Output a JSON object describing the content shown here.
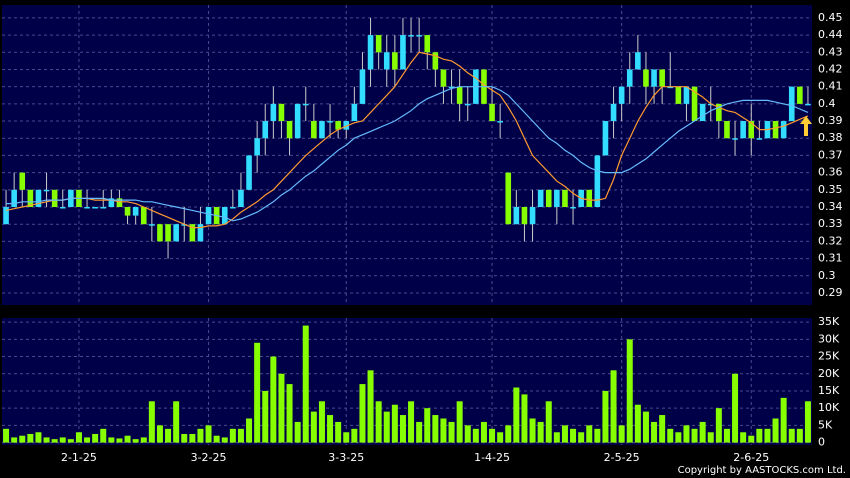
{
  "chart_data": [
    {
      "type": "candlestick",
      "up_color": "#33ddff",
      "down_color": "#88ff00",
      "grid": true,
      "ylim": [
        0.283,
        0.4575
      ],
      "yticks": [
        0.45,
        0.44,
        0.43,
        0.42,
        0.41,
        0.4,
        0.39,
        0.38,
        0.37,
        0.36,
        0.35,
        0.34,
        0.33,
        0.32,
        0.31,
        0.3,
        0.29
      ],
      "ohlc": [
        [
          0.33,
          0.35,
          0.33,
          0.34
        ],
        [
          0.34,
          0.36,
          0.34,
          0.35
        ],
        [
          0.36,
          0.36,
          0.34,
          0.35
        ],
        [
          0.35,
          0.35,
          0.34,
          0.34
        ],
        [
          0.34,
          0.35,
          0.34,
          0.35
        ],
        [
          0.35,
          0.36,
          0.34,
          0.35
        ],
        [
          0.35,
          0.35,
          0.34,
          0.34
        ],
        [
          0.34,
          0.35,
          0.34,
          0.34
        ],
        [
          0.34,
          0.35,
          0.34,
          0.35
        ],
        [
          0.35,
          0.35,
          0.34,
          0.34
        ],
        [
          0.34,
          0.35,
          0.34,
          0.34
        ],
        [
          0.34,
          0.34,
          0.34,
          0.34
        ],
        [
          0.34,
          0.35,
          0.34,
          0.34
        ],
        [
          0.34,
          0.35,
          0.34,
          0.345
        ],
        [
          0.345,
          0.35,
          0.34,
          0.34
        ],
        [
          0.34,
          0.34,
          0.33,
          0.335
        ],
        [
          0.335,
          0.34,
          0.33,
          0.34
        ],
        [
          0.34,
          0.34,
          0.33,
          0.33
        ],
        [
          0.33,
          0.34,
          0.32,
          0.33
        ],
        [
          0.33,
          0.33,
          0.32,
          0.32
        ],
        [
          0.33,
          0.33,
          0.31,
          0.32
        ],
        [
          0.32,
          0.33,
          0.32,
          0.33
        ],
        [
          0.33,
          0.34,
          0.32,
          0.33
        ],
        [
          0.33,
          0.33,
          0.32,
          0.32
        ],
        [
          0.32,
          0.34,
          0.32,
          0.33
        ],
        [
          0.33,
          0.34,
          0.33,
          0.34
        ],
        [
          0.34,
          0.34,
          0.33,
          0.33
        ],
        [
          0.33,
          0.34,
          0.33,
          0.34
        ],
        [
          0.34,
          0.35,
          0.34,
          0.34
        ],
        [
          0.34,
          0.36,
          0.34,
          0.35
        ],
        [
          0.35,
          0.37,
          0.35,
          0.37
        ],
        [
          0.37,
          0.39,
          0.36,
          0.38
        ],
        [
          0.38,
          0.4,
          0.37,
          0.39
        ],
        [
          0.39,
          0.41,
          0.38,
          0.4
        ],
        [
          0.4,
          0.4,
          0.38,
          0.39
        ],
        [
          0.39,
          0.39,
          0.37,
          0.38
        ],
        [
          0.38,
          0.4,
          0.38,
          0.4
        ],
        [
          0.4,
          0.41,
          0.39,
          0.4
        ],
        [
          0.39,
          0.4,
          0.38,
          0.38
        ],
        [
          0.38,
          0.39,
          0.38,
          0.39
        ],
        [
          0.39,
          0.4,
          0.38,
          0.39
        ],
        [
          0.39,
          0.39,
          0.38,
          0.385
        ],
        [
          0.385,
          0.39,
          0.38,
          0.39
        ],
        [
          0.39,
          0.41,
          0.39,
          0.4
        ],
        [
          0.4,
          0.43,
          0.4,
          0.42
        ],
        [
          0.42,
          0.45,
          0.41,
          0.44
        ],
        [
          0.44,
          0.44,
          0.42,
          0.43
        ],
        [
          0.42,
          0.44,
          0.41,
          0.43
        ],
        [
          0.43,
          0.44,
          0.41,
          0.42
        ],
        [
          0.42,
          0.45,
          0.42,
          0.44
        ],
        [
          0.44,
          0.45,
          0.43,
          0.44
        ],
        [
          0.44,
          0.45,
          0.43,
          0.44
        ],
        [
          0.44,
          0.44,
          0.42,
          0.43
        ],
        [
          0.43,
          0.43,
          0.41,
          0.42
        ],
        [
          0.42,
          0.42,
          0.4,
          0.41
        ],
        [
          0.41,
          0.42,
          0.4,
          0.41
        ],
        [
          0.41,
          0.42,
          0.39,
          0.4
        ],
        [
          0.4,
          0.41,
          0.39,
          0.4
        ],
        [
          0.4,
          0.42,
          0.4,
          0.42
        ],
        [
          0.42,
          0.42,
          0.4,
          0.4
        ],
        [
          0.4,
          0.41,
          0.39,
          0.39
        ],
        [
          0.39,
          0.4,
          0.38,
          0.39
        ],
        [
          0.36,
          0.36,
          0.33,
          0.33
        ],
        [
          0.33,
          0.35,
          0.33,
          0.34
        ],
        [
          0.34,
          0.34,
          0.32,
          0.33
        ],
        [
          0.33,
          0.35,
          0.32,
          0.34
        ],
        [
          0.34,
          0.35,
          0.34,
          0.35
        ],
        [
          0.35,
          0.35,
          0.34,
          0.34
        ],
        [
          0.34,
          0.35,
          0.33,
          0.35
        ],
        [
          0.35,
          0.35,
          0.34,
          0.34
        ],
        [
          0.34,
          0.35,
          0.33,
          0.34
        ],
        [
          0.34,
          0.35,
          0.34,
          0.35
        ],
        [
          0.35,
          0.35,
          0.34,
          0.34
        ],
        [
          0.34,
          0.37,
          0.34,
          0.37
        ],
        [
          0.37,
          0.39,
          0.37,
          0.39
        ],
        [
          0.39,
          0.41,
          0.38,
          0.4
        ],
        [
          0.4,
          0.41,
          0.39,
          0.41
        ],
        [
          0.41,
          0.43,
          0.4,
          0.42
        ],
        [
          0.42,
          0.44,
          0.42,
          0.43
        ],
        [
          0.42,
          0.43,
          0.4,
          0.41
        ],
        [
          0.41,
          0.42,
          0.4,
          0.42
        ],
        [
          0.42,
          0.42,
          0.4,
          0.41
        ],
        [
          0.41,
          0.43,
          0.41,
          0.41
        ],
        [
          0.41,
          0.41,
          0.4,
          0.4
        ],
        [
          0.4,
          0.41,
          0.39,
          0.41
        ],
        [
          0.41,
          0.41,
          0.39,
          0.39
        ],
        [
          0.39,
          0.4,
          0.39,
          0.4
        ],
        [
          0.4,
          0.41,
          0.39,
          0.4
        ],
        [
          0.4,
          0.4,
          0.38,
          0.39
        ],
        [
          0.39,
          0.39,
          0.38,
          0.38
        ],
        [
          0.38,
          0.39,
          0.37,
          0.38
        ],
        [
          0.38,
          0.39,
          0.38,
          0.39
        ],
        [
          0.39,
          0.4,
          0.37,
          0.38
        ],
        [
          0.38,
          0.39,
          0.38,
          0.38
        ],
        [
          0.38,
          0.39,
          0.38,
          0.39
        ],
        [
          0.39,
          0.39,
          0.38,
          0.38
        ],
        [
          0.38,
          0.39,
          0.38,
          0.39
        ],
        [
          0.39,
          0.41,
          0.39,
          0.41
        ],
        [
          0.41,
          0.41,
          0.4,
          0.4
        ],
        [
          0.4,
          0.41,
          0.4,
          0.4
        ]
      ],
      "series": [
        {
          "color": "#ff9a30",
          "values": [
            0.338,
            0.339,
            0.34,
            0.341,
            0.342,
            0.343,
            0.344,
            0.344,
            0.345,
            0.345,
            0.345,
            0.344,
            0.344,
            0.344,
            0.343,
            0.343,
            0.342,
            0.34,
            0.338,
            0.336,
            0.334,
            0.332,
            0.33,
            0.328,
            0.328,
            0.329,
            0.329,
            0.33,
            0.333,
            0.337,
            0.34,
            0.343,
            0.347,
            0.35,
            0.355,
            0.36,
            0.365,
            0.37,
            0.374,
            0.378,
            0.382,
            0.385,
            0.387,
            0.389,
            0.39,
            0.395,
            0.4,
            0.405,
            0.41,
            0.417,
            0.424,
            0.43,
            0.429,
            0.428,
            0.426,
            0.425,
            0.422,
            0.418,
            0.415,
            0.411,
            0.408,
            0.405,
            0.398,
            0.39,
            0.38,
            0.37,
            0.365,
            0.36,
            0.355,
            0.352,
            0.348,
            0.345,
            0.344,
            0.344,
            0.345,
            0.356,
            0.37,
            0.38,
            0.39,
            0.398,
            0.405,
            0.41,
            0.41,
            0.41,
            0.41,
            0.407,
            0.404,
            0.4,
            0.398,
            0.396,
            0.395,
            0.392,
            0.389,
            0.385,
            0.385,
            0.386,
            0.387,
            0.389,
            0.391,
            0.393
          ]
        },
        {
          "color": "#66bbff",
          "values": [
            0.342,
            0.342,
            0.343,
            0.343,
            0.343,
            0.344,
            0.344,
            0.344,
            0.345,
            0.345,
            0.345,
            0.345,
            0.345,
            0.344,
            0.344,
            0.344,
            0.344,
            0.343,
            0.343,
            0.342,
            0.341,
            0.34,
            0.339,
            0.338,
            0.337,
            0.336,
            0.335,
            0.334,
            0.332,
            0.333,
            0.335,
            0.337,
            0.34,
            0.343,
            0.347,
            0.35,
            0.354,
            0.358,
            0.361,
            0.365,
            0.369,
            0.373,
            0.376,
            0.38,
            0.382,
            0.384,
            0.386,
            0.388,
            0.39,
            0.393,
            0.396,
            0.4,
            0.403,
            0.405,
            0.407,
            0.409,
            0.41,
            0.41,
            0.41,
            0.41,
            0.41,
            0.408,
            0.405,
            0.4,
            0.395,
            0.39,
            0.385,
            0.38,
            0.377,
            0.373,
            0.37,
            0.366,
            0.363,
            0.361,
            0.36,
            0.36,
            0.36,
            0.362,
            0.365,
            0.368,
            0.372,
            0.376,
            0.38,
            0.384,
            0.387,
            0.39,
            0.393,
            0.396,
            0.398,
            0.4,
            0.401,
            0.402,
            0.402,
            0.402,
            0.402,
            0.401,
            0.4,
            0.399,
            0.397,
            0.395
          ]
        }
      ]
    },
    {
      "type": "bar",
      "color": "#88ff00",
      "grid": true,
      "ylim": [
        -700,
        36200
      ],
      "yticks": [
        {
          "value": 35000,
          "label": "35K"
        },
        {
          "value": 30000,
          "label": "30K"
        },
        {
          "value": 25000,
          "label": "25K"
        },
        {
          "value": 20000,
          "label": "20K"
        },
        {
          "value": 15000,
          "label": "15K"
        },
        {
          "value": 10000,
          "label": "10K"
        },
        {
          "value": 5000,
          "label": "5K"
        },
        0
      ],
      "categories": [
        null,
        null,
        null,
        null,
        null,
        null,
        null,
        null,
        null,
        "2-1-25",
        null,
        null,
        null,
        null,
        null,
        null,
        null,
        null,
        null,
        null,
        null,
        null,
        null,
        null,
        null,
        "3-2-25",
        null,
        null,
        null,
        null,
        null,
        null,
        null,
        null,
        null,
        null,
        null,
        null,
        null,
        null,
        null,
        null,
        "3-3-25",
        null,
        null,
        null,
        null,
        null,
        null,
        null,
        null,
        null,
        null,
        null,
        null,
        null,
        null,
        null,
        null,
        null,
        "1-4-25",
        null,
        null,
        null,
        null,
        null,
        null,
        null,
        null,
        null,
        null,
        null,
        null,
        null,
        null,
        null,
        "2-5-25",
        null,
        null,
        null,
        null,
        null,
        null,
        null,
        null,
        null,
        null,
        null,
        null,
        null,
        null,
        null,
        "2-6-25",
        null,
        null,
        null,
        null,
        null,
        null,
        null
      ],
      "values": [
        4000,
        1500,
        2000,
        2500,
        3000,
        1500,
        1000,
        1500,
        1000,
        3000,
        1500,
        2500,
        4000,
        1500,
        1200,
        2000,
        1000,
        1500,
        12000,
        5000,
        4000,
        12000,
        2500,
        2500,
        4000,
        5000,
        2000,
        1500,
        4000,
        4000,
        7000,
        29000,
        15000,
        25000,
        20000,
        17000,
        6000,
        34000,
        9000,
        12000,
        8000,
        6000,
        3000,
        4000,
        17000,
        21000,
        12000,
        9000,
        11000,
        8000,
        12000,
        6000,
        10000,
        8000,
        7000,
        6000,
        12000,
        5000,
        4000,
        6000,
        4000,
        3000,
        5000,
        16000,
        14000,
        7000,
        6000,
        12000,
        3000,
        5000,
        4000,
        3000,
        5000,
        4000,
        15000,
        21000,
        5000,
        30000,
        11000,
        9000,
        6000,
        8000,
        4000,
        3000,
        5000,
        4000,
        6000,
        3000,
        10000,
        4000,
        20000,
        3000,
        2000,
        4000,
        4000,
        7000,
        13000,
        4000,
        4000,
        12000
      ]
    }
  ],
  "copyright": "Copyright by AASTOCKS.com Ltd."
}
